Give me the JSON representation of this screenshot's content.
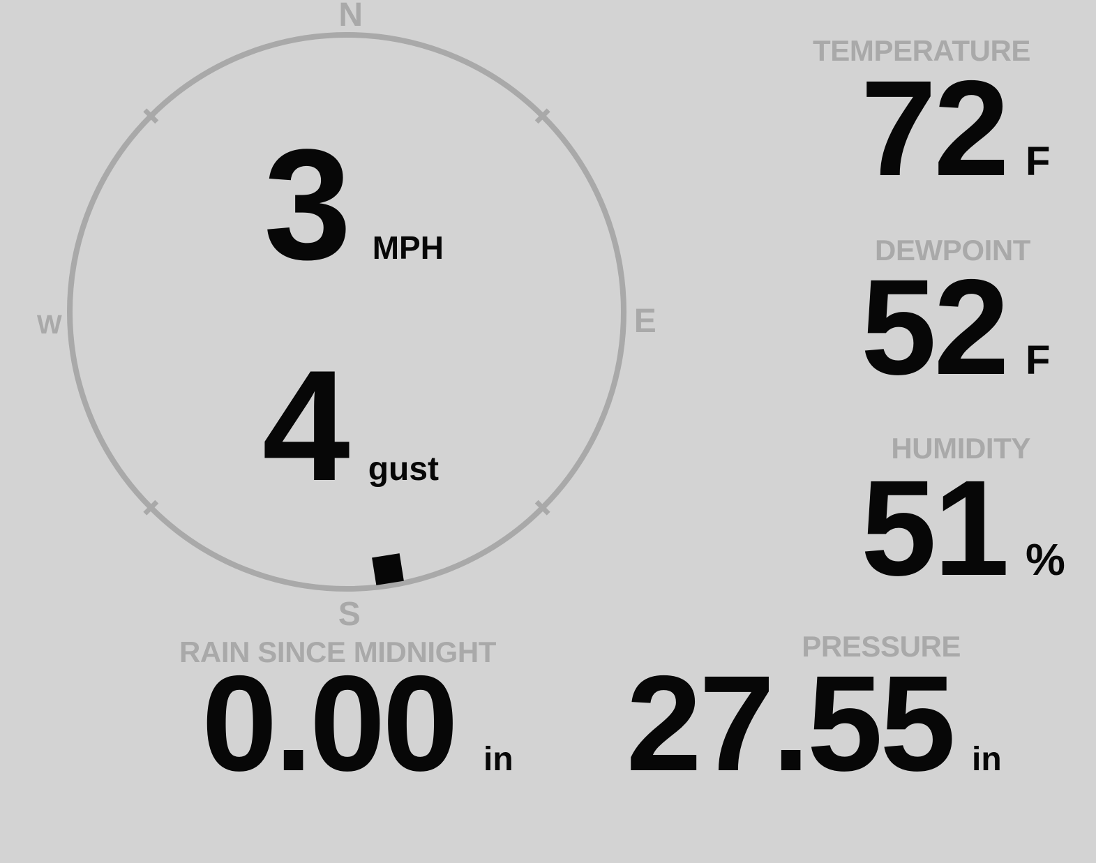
{
  "colors": {
    "background": "#d3d3d3",
    "muted_gray": "#a9a9a9",
    "value_black": "#070707"
  },
  "wind": {
    "speed_value": "3",
    "speed_unit": "MPH",
    "gust_value": "4",
    "gust_unit": "gust",
    "direction_degrees": 171,
    "compass": {
      "north": "N",
      "east": "E",
      "south": "S",
      "west": "W"
    }
  },
  "metrics": {
    "temperature": {
      "label": "TEMPERATURE",
      "value": "72",
      "unit": "F"
    },
    "dewpoint": {
      "label": "DEWPOINT",
      "value": "52",
      "unit": "F"
    },
    "humidity": {
      "label": "HUMIDITY",
      "value": "51",
      "unit": "%"
    },
    "rain": {
      "label": "RAIN SINCE MIDNIGHT",
      "value": "0.00",
      "unit": "in"
    },
    "pressure": {
      "label": "PRESSURE",
      "value": "27.55",
      "unit": "in"
    }
  }
}
